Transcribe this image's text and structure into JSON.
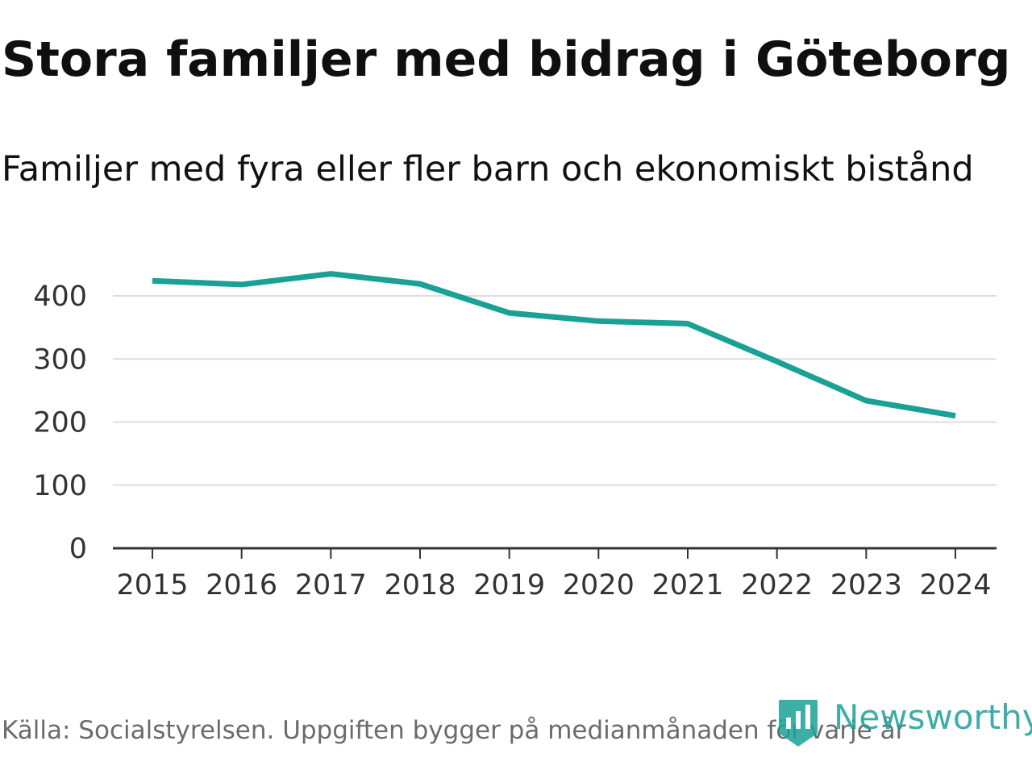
{
  "title": "Stora familjer med bidrag i Göteborg",
  "subtitle": "Familjer med fyra eller fler barn och ekonomiskt bistånd",
  "source": "Källa: Socialstyrelsen. Uppgiften bygger på medianmånaden för varje år",
  "brand": {
    "name": "Newsworthy",
    "icon": "newsworthy-logo-icon",
    "color": "#1aa196"
  },
  "colors": {
    "line": "#1aa196",
    "grid": "#dddddd",
    "axis": "#333333"
  },
  "chart_data": {
    "type": "line",
    "title": "Stora familjer med bidrag i Göteborg",
    "subtitle": "Familjer med fyra eller fler barn och ekonomiskt bistånd",
    "xlabel": "",
    "ylabel": "",
    "categories": [
      "2015",
      "2016",
      "2017",
      "2018",
      "2019",
      "2020",
      "2021",
      "2022",
      "2023",
      "2024"
    ],
    "series": [
      {
        "name": "Familjer med fyra eller fler barn och ekonomiskt bistånd",
        "values": [
          424,
          418,
          435,
          419,
          373,
          360,
          356,
          296,
          234,
          210
        ]
      }
    ],
    "ylim": [
      0,
      400
    ],
    "yticks": [
      0,
      100,
      200,
      300,
      400
    ],
    "grid": true,
    "legend": "none"
  }
}
